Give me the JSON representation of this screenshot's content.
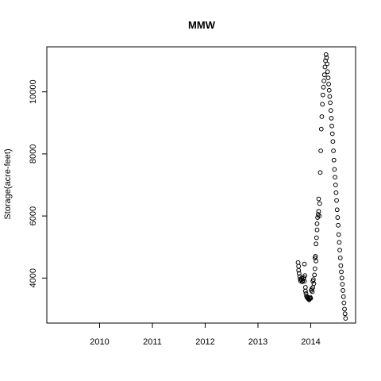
{
  "chart_data": {
    "type": "scatter",
    "title": "MMW",
    "xlabel": "",
    "ylabel": "Storage(acre-feet)",
    "xlim": [
      2009.0,
      2014.85
    ],
    "ylim": [
      2550,
      11450
    ],
    "x_ticks": [
      2010,
      2011,
      2012,
      2013,
      2014
    ],
    "x_tick_labels": [
      "2010",
      "2011",
      "2012",
      "2013",
      "2014"
    ],
    "y_ticks": [
      4000,
      6000,
      8000,
      10000
    ],
    "y_tick_labels": [
      "4000",
      "6000",
      "8000",
      "10000"
    ],
    "grid": false,
    "legend": "none",
    "points": [
      {
        "x": 2013.76,
        "y": 4500
      },
      {
        "x": 2013.77,
        "y": 4380
      },
      {
        "x": 2013.77,
        "y": 4250
      },
      {
        "x": 2013.78,
        "y": 4150
      },
      {
        "x": 2013.79,
        "y": 4050
      },
      {
        "x": 2013.8,
        "y": 3960
      },
      {
        "x": 2013.81,
        "y": 3900
      },
      {
        "x": 2013.82,
        "y": 3950
      },
      {
        "x": 2013.83,
        "y": 4000
      },
      {
        "x": 2013.84,
        "y": 3880
      },
      {
        "x": 2013.85,
        "y": 3920
      },
      {
        "x": 2013.86,
        "y": 3980
      },
      {
        "x": 2013.87,
        "y": 4020
      },
      {
        "x": 2013.88,
        "y": 3900
      },
      {
        "x": 2013.88,
        "y": 4450
      },
      {
        "x": 2013.89,
        "y": 4080
      },
      {
        "x": 2013.9,
        "y": 3700
      },
      {
        "x": 2013.9,
        "y": 3580
      },
      {
        "x": 2013.91,
        "y": 3500
      },
      {
        "x": 2013.92,
        "y": 3420
      },
      {
        "x": 2013.93,
        "y": 3380
      },
      {
        "x": 2013.94,
        "y": 3360
      },
      {
        "x": 2013.95,
        "y": 3340
      },
      {
        "x": 2013.96,
        "y": 3320
      },
      {
        "x": 2013.97,
        "y": 3300
      },
      {
        "x": 2013.98,
        "y": 3340
      },
      {
        "x": 2013.99,
        "y": 3380
      },
      {
        "x": 2014.0,
        "y": 3350
      },
      {
        "x": 2014.01,
        "y": 3600
      },
      {
        "x": 2014.02,
        "y": 3650
      },
      {
        "x": 2014.03,
        "y": 3560
      },
      {
        "x": 2014.04,
        "y": 3700
      },
      {
        "x": 2014.04,
        "y": 3900
      },
      {
        "x": 2014.05,
        "y": 3950
      },
      {
        "x": 2014.06,
        "y": 3820
      },
      {
        "x": 2014.07,
        "y": 4100
      },
      {
        "x": 2014.08,
        "y": 4300
      },
      {
        "x": 2014.08,
        "y": 4650
      },
      {
        "x": 2014.09,
        "y": 4700
      },
      {
        "x": 2014.1,
        "y": 4550
      },
      {
        "x": 2014.1,
        "y": 5100
      },
      {
        "x": 2014.11,
        "y": 5300
      },
      {
        "x": 2014.12,
        "y": 5550
      },
      {
        "x": 2014.12,
        "y": 5750
      },
      {
        "x": 2014.13,
        "y": 5950
      },
      {
        "x": 2014.14,
        "y": 6050
      },
      {
        "x": 2014.15,
        "y": 6150
      },
      {
        "x": 2014.15,
        "y": 6550
      },
      {
        "x": 2014.16,
        "y": 6000
      },
      {
        "x": 2014.17,
        "y": 6400
      },
      {
        "x": 2014.18,
        "y": 7400
      },
      {
        "x": 2014.19,
        "y": 8100
      },
      {
        "x": 2014.2,
        "y": 8800
      },
      {
        "x": 2014.21,
        "y": 9200
      },
      {
        "x": 2014.22,
        "y": 9600
      },
      {
        "x": 2014.23,
        "y": 9900
      },
      {
        "x": 2014.24,
        "y": 10150
      },
      {
        "x": 2014.25,
        "y": 10350
      },
      {
        "x": 2014.26,
        "y": 10550
      },
      {
        "x": 2014.27,
        "y": 10800
      },
      {
        "x": 2014.28,
        "y": 11000
      },
      {
        "x": 2014.29,
        "y": 11200
      },
      {
        "x": 2014.3,
        "y": 11100
      },
      {
        "x": 2014.31,
        "y": 10900
      },
      {
        "x": 2014.32,
        "y": 10650
      },
      {
        "x": 2014.33,
        "y": 10450
      },
      {
        "x": 2014.34,
        "y": 10250
      },
      {
        "x": 2014.35,
        "y": 10050
      },
      {
        "x": 2014.36,
        "y": 9850
      },
      {
        "x": 2014.37,
        "y": 9650
      },
      {
        "x": 2014.38,
        "y": 9400
      },
      {
        "x": 2014.39,
        "y": 9150
      },
      {
        "x": 2014.4,
        "y": 8900
      },
      {
        "x": 2014.41,
        "y": 8650
      },
      {
        "x": 2014.42,
        "y": 8400
      },
      {
        "x": 2014.43,
        "y": 8100
      },
      {
        "x": 2014.44,
        "y": 7800
      },
      {
        "x": 2014.45,
        "y": 7500
      },
      {
        "x": 2014.46,
        "y": 7250
      },
      {
        "x": 2014.47,
        "y": 7000
      },
      {
        "x": 2014.48,
        "y": 6750
      },
      {
        "x": 2014.49,
        "y": 6500
      },
      {
        "x": 2014.5,
        "y": 6200
      },
      {
        "x": 2014.51,
        "y": 5950
      },
      {
        "x": 2014.52,
        "y": 5700
      },
      {
        "x": 2014.53,
        "y": 5400
      },
      {
        "x": 2014.54,
        "y": 5150
      },
      {
        "x": 2014.55,
        "y": 4900
      },
      {
        "x": 2014.56,
        "y": 4650
      },
      {
        "x": 2014.57,
        "y": 4400
      },
      {
        "x": 2014.58,
        "y": 4200
      },
      {
        "x": 2014.59,
        "y": 4000
      },
      {
        "x": 2014.6,
        "y": 3800
      },
      {
        "x": 2014.61,
        "y": 3600
      },
      {
        "x": 2014.62,
        "y": 3400
      },
      {
        "x": 2014.63,
        "y": 3200
      },
      {
        "x": 2014.64,
        "y": 3000
      },
      {
        "x": 2014.65,
        "y": 2850
      },
      {
        "x": 2014.66,
        "y": 2700
      }
    ]
  }
}
